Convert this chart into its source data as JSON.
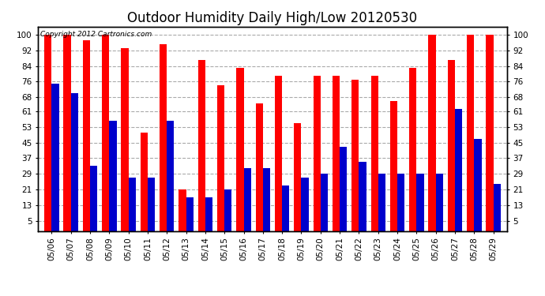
{
  "title": "Outdoor Humidity Daily High/Low 20120530",
  "copyright": "Copyright 2012 Cartronics.com",
  "dates": [
    "05/06",
    "05/07",
    "05/08",
    "05/09",
    "05/10",
    "05/11",
    "05/12",
    "05/13",
    "05/14",
    "05/15",
    "05/16",
    "05/17",
    "05/18",
    "05/19",
    "05/20",
    "05/21",
    "05/22",
    "05/23",
    "05/24",
    "05/25",
    "05/26",
    "05/27",
    "05/28",
    "05/29"
  ],
  "high_values": [
    100,
    100,
    97,
    100,
    93,
    50,
    95,
    21,
    87,
    74,
    83,
    65,
    79,
    55,
    79,
    79,
    77,
    79,
    66,
    83,
    100,
    87,
    100,
    100
  ],
  "low_values": [
    75,
    70,
    33,
    56,
    27,
    27,
    56,
    17,
    17,
    21,
    32,
    32,
    23,
    27,
    29,
    43,
    35,
    29,
    29,
    29,
    29,
    62,
    47,
    24
  ],
  "high_color": "#ff0000",
  "low_color": "#0000cc",
  "background_color": "#ffffff",
  "yticks": [
    5,
    13,
    21,
    29,
    37,
    45,
    53,
    61,
    68,
    76,
    84,
    92,
    100
  ],
  "ylim": [
    0,
    104
  ],
  "grid_color": "#aaaaaa",
  "bar_width": 0.38,
  "title_fontsize": 12,
  "tick_fontsize": 7.5,
  "copyright_fontsize": 6.5
}
